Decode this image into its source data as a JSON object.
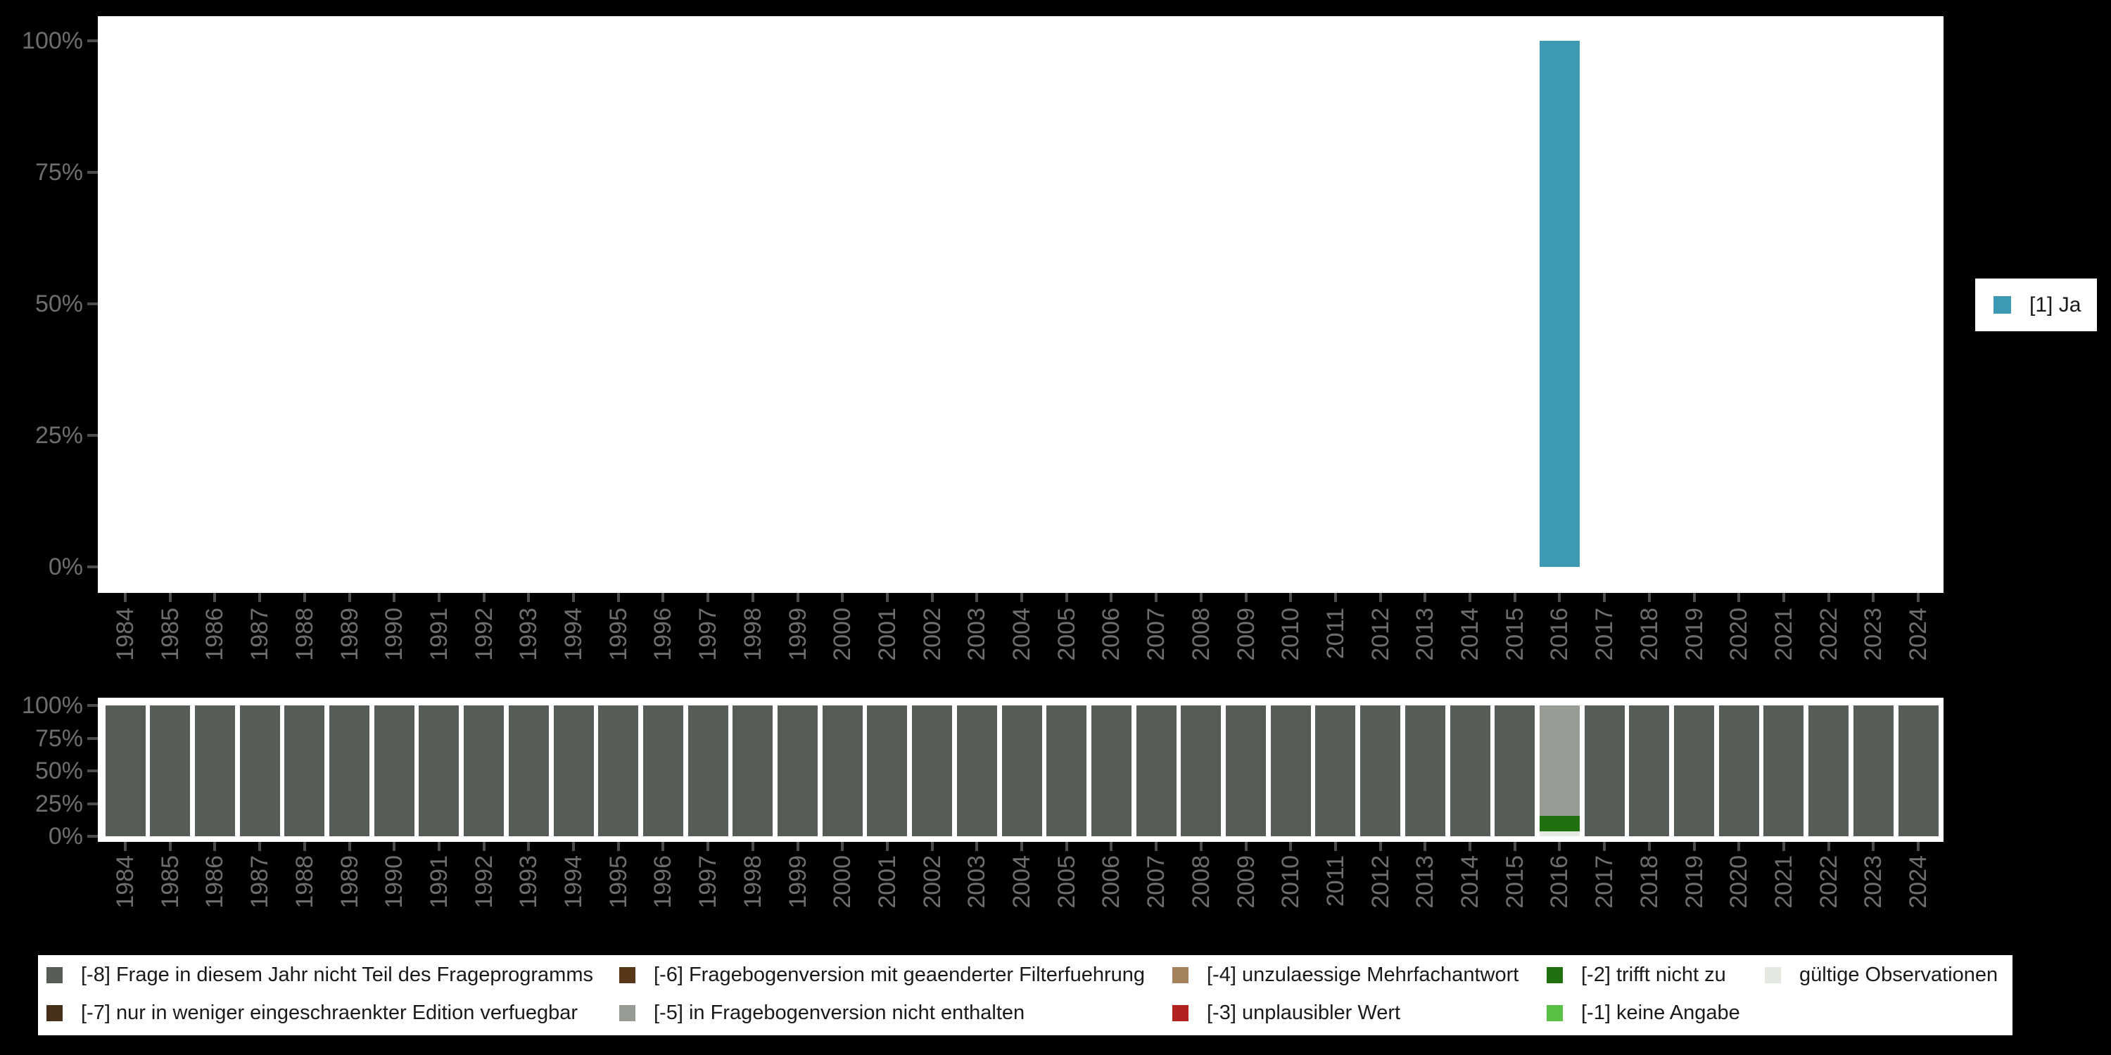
{
  "colors": {
    "background": "#000000",
    "plot_background": "#ffffff",
    "axis_text": "#6e6e6e",
    "tick_mark": "#4d4d4d",
    "legend_text": "#1a1a1a"
  },
  "code_colors": {
    "[1]": "#3d9ab2",
    "[-8]": "#565d56",
    "[-7]": "#473019",
    "[-6]": "#573718",
    "[-5]": "#969c94",
    "[-4]": "#a3815a",
    "[-3]": "#b2221e",
    "[-2]": "#217010",
    "[-1]": "#58c043",
    "valid": "#e3e8e0"
  },
  "legend_right": {
    "label": "[1] Ja",
    "code": "[1]"
  },
  "missing_legend": {
    "columns": [
      [
        {
          "code": "[-8]",
          "label": "[-8] Frage in diesem Jahr nicht Teil des Frageprogramms"
        },
        {
          "code": "[-7]",
          "label": "[-7] nur in weniger eingeschraenkter Edition verfuegbar"
        }
      ],
      [
        {
          "code": "[-6]",
          "label": "[-6] Fragebogenversion mit geaenderter Filterfuehrung"
        },
        {
          "code": "[-5]",
          "label": "[-5] in Fragebogenversion nicht enthalten"
        }
      ],
      [
        {
          "code": "[-4]",
          "label": "[-4] unzulaessige Mehrfachantwort"
        },
        {
          "code": "[-3]",
          "label": "[-3] unplausibler Wert"
        }
      ],
      [
        {
          "code": "[-2]",
          "label": "[-2] trifft nicht zu"
        },
        {
          "code": "[-1]",
          "label": "[-1] keine Angabe"
        }
      ],
      [
        {
          "code": "valid",
          "label": "gültige Observationen"
        }
      ]
    ]
  },
  "chart_data": [
    {
      "id": "values",
      "type": "bar",
      "title": "",
      "categories": [
        "1984",
        "1985",
        "1986",
        "1987",
        "1988",
        "1989",
        "1990",
        "1991",
        "1992",
        "1993",
        "1994",
        "1995",
        "1996",
        "1997",
        "1998",
        "1999",
        "2000",
        "2001",
        "2002",
        "2003",
        "2004",
        "2005",
        "2006",
        "2007",
        "2008",
        "2009",
        "2010",
        "2011",
        "2012",
        "2013",
        "2014",
        "2015",
        "2016",
        "2017",
        "2018",
        "2019",
        "2020",
        "2021",
        "2022",
        "2023",
        "2024"
      ],
      "ylim": [
        0,
        100
      ],
      "yticks": [
        0,
        25,
        50,
        75,
        100
      ],
      "ytick_labels": [
        "0%",
        "25%",
        "50%",
        "75%",
        "100%"
      ],
      "grid": false,
      "legend_position": "right",
      "stack_order": "bottom_to_top",
      "series": [
        {
          "name": "[1] Ja",
          "color_code": "[1]",
          "values": [
            null,
            null,
            null,
            null,
            null,
            null,
            null,
            null,
            null,
            null,
            null,
            null,
            null,
            null,
            null,
            null,
            null,
            null,
            null,
            null,
            null,
            null,
            null,
            null,
            null,
            null,
            null,
            null,
            null,
            null,
            null,
            null,
            100,
            null,
            null,
            null,
            null,
            null,
            null,
            null,
            null
          ]
        }
      ]
    },
    {
      "id": "missings",
      "type": "stacked_bar",
      "title": "",
      "categories": [
        "1984",
        "1985",
        "1986",
        "1987",
        "1988",
        "1989",
        "1990",
        "1991",
        "1992",
        "1993",
        "1994",
        "1995",
        "1996",
        "1997",
        "1998",
        "1999",
        "2000",
        "2001",
        "2002",
        "2003",
        "2004",
        "2005",
        "2006",
        "2007",
        "2008",
        "2009",
        "2010",
        "2011",
        "2012",
        "2013",
        "2014",
        "2015",
        "2016",
        "2017",
        "2018",
        "2019",
        "2020",
        "2021",
        "2022",
        "2023",
        "2024"
      ],
      "ylim": [
        0,
        100
      ],
      "yticks": [
        0,
        25,
        50,
        75,
        100
      ],
      "ytick_labels": [
        "0%",
        "25%",
        "50%",
        "75%",
        "100%"
      ],
      "grid": false,
      "legend_position": "bottom",
      "stack_order": "bottom_to_top",
      "series": [
        {
          "name": "gültige Observationen",
          "color_code": "valid",
          "values": [
            0,
            0,
            0,
            0,
            0,
            0,
            0,
            0,
            0,
            0,
            0,
            0,
            0,
            0,
            0,
            0,
            0,
            0,
            0,
            0,
            0,
            0,
            0,
            0,
            0,
            0,
            0,
            0,
            0,
            0,
            0,
            0,
            3.8,
            0,
            0,
            0,
            0,
            0,
            0,
            0,
            0
          ]
        },
        {
          "name": "[-2] trifft nicht zu",
          "color_code": "[-2]",
          "values": [
            0,
            0,
            0,
            0,
            0,
            0,
            0,
            0,
            0,
            0,
            0,
            0,
            0,
            0,
            0,
            0,
            0,
            0,
            0,
            0,
            0,
            0,
            0,
            0,
            0,
            0,
            0,
            0,
            0,
            0,
            0,
            0,
            11.8,
            0,
            0,
            0,
            0,
            0,
            0,
            0,
            0
          ]
        },
        {
          "name": "[-5] in Fragebogenversion nicht enthalten",
          "color_code": "[-5]",
          "values": [
            0,
            0,
            0,
            0,
            0,
            0,
            0,
            0,
            0,
            0,
            0,
            0,
            0,
            0,
            0,
            0,
            0,
            0,
            0,
            0,
            0,
            0,
            0,
            0,
            0,
            0,
            0,
            0,
            0,
            0,
            0,
            0,
            84.4,
            0,
            0,
            0,
            0,
            0,
            0,
            0,
            0
          ]
        },
        {
          "name": "[-8] Frage in diesem Jahr nicht Teil des Frageprogramms",
          "color_code": "[-8]",
          "values": [
            100,
            100,
            100,
            100,
            100,
            100,
            100,
            100,
            100,
            100,
            100,
            100,
            100,
            100,
            100,
            100,
            100,
            100,
            100,
            100,
            100,
            100,
            100,
            100,
            100,
            100,
            100,
            100,
            100,
            100,
            100,
            100,
            0,
            100,
            100,
            100,
            100,
            100,
            100,
            100,
            100
          ]
        }
      ]
    }
  ]
}
